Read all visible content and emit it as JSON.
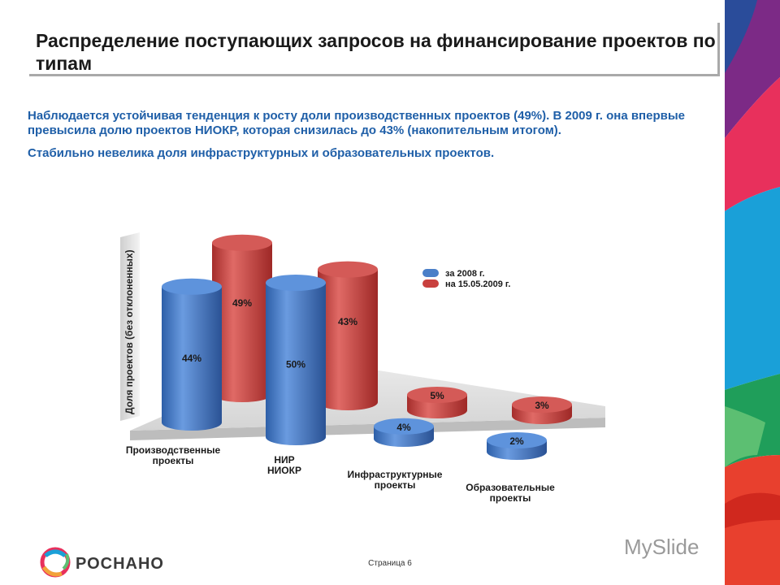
{
  "title": "Распределение поступающих запросов на финансирование проектов по типам",
  "body": {
    "paragraph1": "Наблюдается устойчивая тенденция к росту доли производственных проектов (49%). В 2009 г. она впервые превысила долю проектов НИОКР, которая снизилась до 43% (накопительным итогом).",
    "paragraph2": "Стабильно невелика доля инфраструктурных и образовательных проектов."
  },
  "footer": {
    "page": "Страница 6",
    "brand": "РОСНАНО",
    "watermark": "MySlide"
  },
  "chart_data": {
    "type": "bar",
    "ylabel": "Доля проектов (без отклоненных)",
    "categories": [
      "Производственные проекты",
      "НИР НИОКР",
      "Инфраструктурные проекты",
      "Образовательные проекты"
    ],
    "series": [
      {
        "name": "за 2008 г.",
        "values": [
          44,
          50,
          4,
          2
        ],
        "color": "#4a7fc8",
        "labels": [
          "44%",
          "50%",
          "4%",
          "2%"
        ]
      },
      {
        "name": "на 15.05.2009 г.",
        "values": [
          49,
          43,
          5,
          3
        ],
        "color": "#c9403e",
        "labels": [
          "49%",
          "43%",
          "5%",
          "3%"
        ]
      }
    ],
    "legend": "top-right"
  },
  "colors": {
    "title_text": "#1a1a1a",
    "body_text": "#1f5fa8",
    "series_blue": "#4a7fc8",
    "series_red": "#c9403e",
    "floor": "#e0e0e0"
  }
}
